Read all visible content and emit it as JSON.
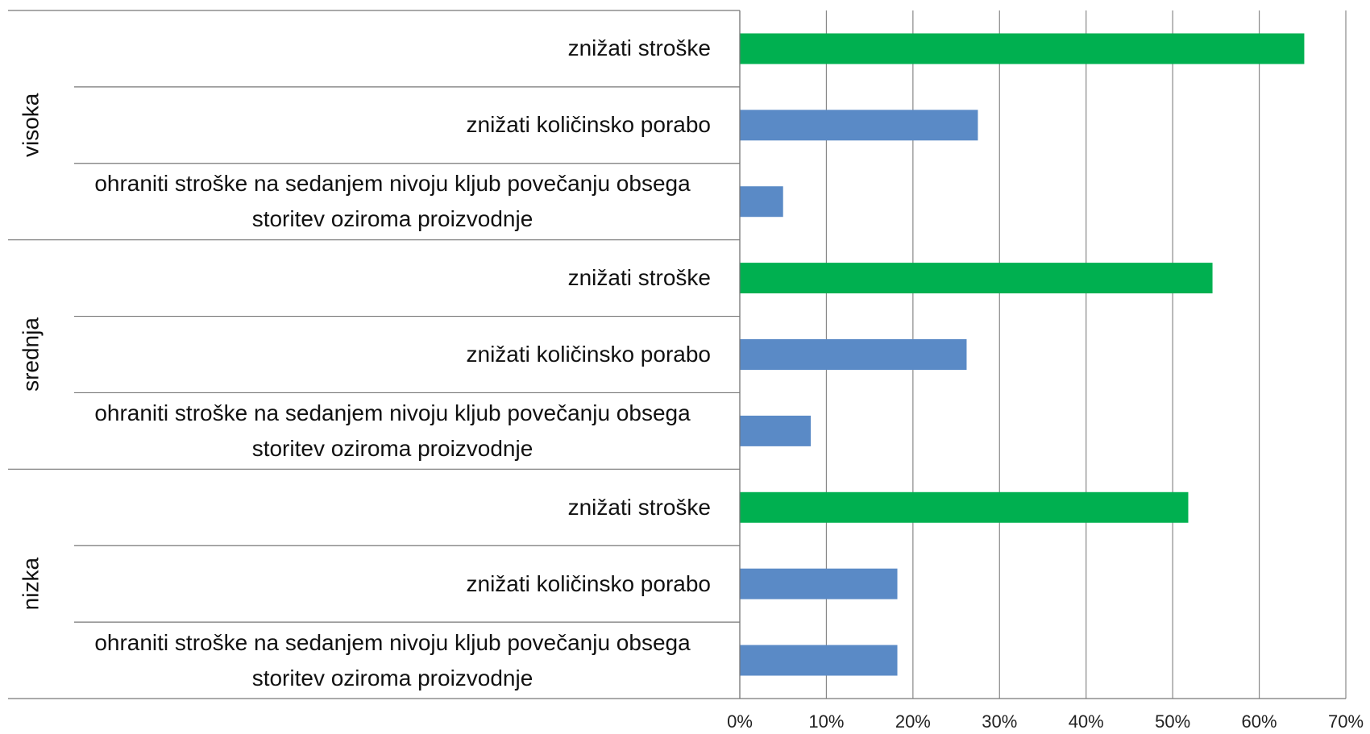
{
  "chart_data": {
    "type": "bar",
    "orientation": "horizontal",
    "groups": [
      {
        "name": "visoka",
        "categories": [
          "znižati stroške",
          "znižati količinsko porabo",
          "ohraniti stroške na sedanjem nivoju kljub povečanju obsega storitev oziroma proizvodnje"
        ],
        "values": [
          65.2,
          27.5,
          5.0
        ],
        "colors": [
          "#00b050",
          "#5a8ac6",
          "#5a8ac6"
        ]
      },
      {
        "name": "srednja",
        "categories": [
          "znižati stroške",
          "znižati količinsko porabo",
          "ohraniti stroške na sedanjem nivoju kljub povečanju obsega storitev oziroma proizvodnje"
        ],
        "values": [
          54.6,
          26.2,
          8.2
        ],
        "colors": [
          "#00b050",
          "#5a8ac6",
          "#5a8ac6"
        ]
      },
      {
        "name": "nizka",
        "categories": [
          "znižati stroške",
          "znižati količinsko porabo",
          "ohraniti stroške na sedanjem nivoju kljub povečanju obsega storitev oziroma proizvodnje"
        ],
        "values": [
          51.8,
          18.2,
          18.2
        ],
        "colors": [
          "#00b050",
          "#5a8ac6",
          "#5a8ac6"
        ]
      }
    ],
    "xlim": [
      0,
      70
    ],
    "xticks": [
      {
        "value": 0,
        "label": "0%"
      },
      {
        "value": 10,
        "label": "10%"
      },
      {
        "value": 20,
        "label": "20%"
      },
      {
        "value": 30,
        "label": "30%"
      },
      {
        "value": 40,
        "label": "40%"
      },
      {
        "value": 50,
        "label": "50%"
      },
      {
        "value": 60,
        "label": "60%"
      },
      {
        "value": 70,
        "label": "70%"
      }
    ],
    "grid": true
  }
}
